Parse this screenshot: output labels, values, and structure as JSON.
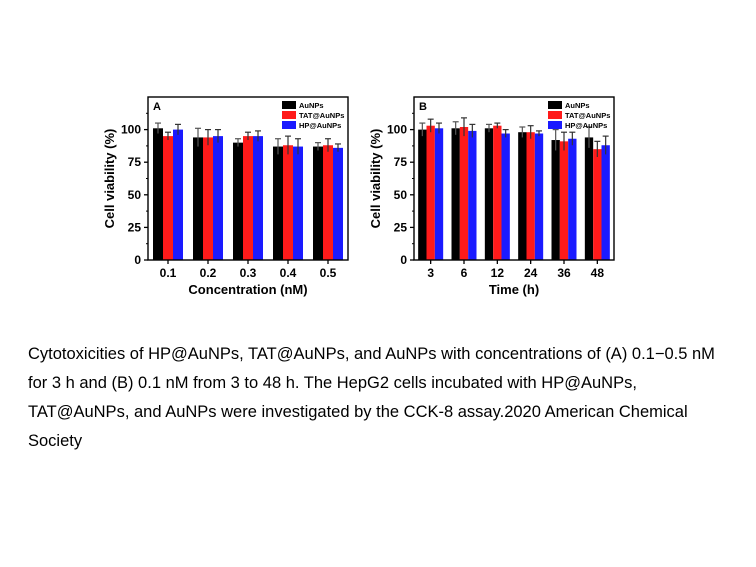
{
  "chart_data": [
    {
      "type": "bar",
      "panel_label": "A",
      "xlabel": "Concentration (nM)",
      "ylabel": "Cell viability (%)",
      "ylim": [
        0,
        125
      ],
      "yticks": [
        0,
        25,
        50,
        75,
        100
      ],
      "categories": [
        "0.1",
        "0.2",
        "0.3",
        "0.4",
        "0.5"
      ],
      "legend_position": "top-right",
      "series": [
        {
          "name": "AuNPs",
          "color": "#000000",
          "values": [
            101,
            94,
            90,
            87,
            87
          ],
          "errors": [
            4,
            7,
            3,
            6,
            3
          ]
        },
        {
          "name": "TAT@AuNPs",
          "color": "#ff1a1a",
          "values": [
            95,
            94,
            95,
            88,
            88
          ],
          "errors": [
            3,
            6,
            3,
            7,
            5
          ]
        },
        {
          "name": "HP@AuNPs",
          "color": "#1a1aff",
          "values": [
            100,
            95,
            95,
            87,
            86
          ],
          "errors": [
            4,
            5,
            4,
            6,
            3
          ]
        }
      ]
    },
    {
      "type": "bar",
      "panel_label": "B",
      "xlabel": "Time (h)",
      "ylabel": "Cell viability (%)",
      "ylim": [
        0,
        125
      ],
      "yticks": [
        0,
        25,
        50,
        75,
        100
      ],
      "categories": [
        "3",
        "6",
        "12",
        "24",
        "36",
        "48"
      ],
      "legend_position": "top-right",
      "series": [
        {
          "name": "AuNPs",
          "color": "#000000",
          "values": [
            100,
            101,
            101,
            98,
            92,
            94
          ],
          "errors": [
            5,
            5,
            3,
            4,
            8,
            8
          ]
        },
        {
          "name": "TAT@AuNPs",
          "color": "#ff1a1a",
          "values": [
            103,
            102,
            103,
            98,
            91,
            85
          ],
          "errors": [
            5,
            7,
            2,
            5,
            7,
            6
          ]
        },
        {
          "name": "HP@AuNPs",
          "color": "#1a1aff",
          "values": [
            101,
            99,
            97,
            97,
            93,
            88
          ],
          "errors": [
            4,
            5,
            3,
            2,
            5,
            7
          ]
        }
      ]
    }
  ],
  "caption": "Cytotoxicities of HP@AuNPs, TAT@AuNPs, and AuNPs with concentrations of (A) 0.1−0.5 nM for 3 h and (B) 0.1 nM from 3 to 48 h. The HepG2 cells incubated with HP@AuNPs, TAT@AuNPs, and AuNPs were investigated by the CCK-8 assay.2020 American Chemical Society"
}
